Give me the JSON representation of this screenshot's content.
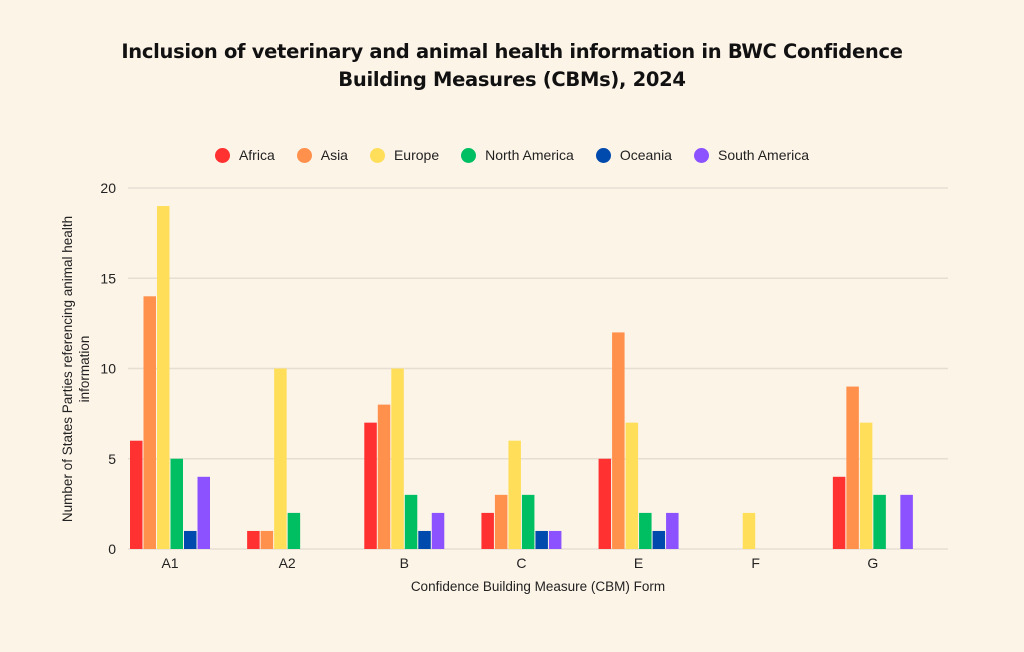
{
  "chart_data": {
    "type": "bar",
    "title": "Inclusion of veterinary and animal health information in BWC Confidence Building Measures (CBMs), 2024",
    "title_lines": [
      "Inclusion of veterinary and animal health information in BWC Confidence",
      "Building Measures (CBMs), 2024"
    ],
    "xlabel": "Confidence Building Measure (CBM) Form",
    "ylabel": "Number of States Parties referencing animal health information",
    "ylabel_lines": [
      "Number of States Parties referencing animal health",
      "information"
    ],
    "ylim": [
      0,
      20
    ],
    "yticks": [
      0,
      5,
      10,
      15,
      20
    ],
    "grid": true,
    "legend_position": "top-center",
    "categories": [
      "A1",
      "A2",
      "B",
      "C",
      "E",
      "F",
      "G"
    ],
    "series": [
      {
        "name": "Africa",
        "color": "#ff3131",
        "values": [
          6,
          1,
          7,
          2,
          5,
          0,
          4
        ]
      },
      {
        "name": "Asia",
        "color": "#ff914d",
        "values": [
          14,
          1,
          8,
          3,
          12,
          0,
          9
        ]
      },
      {
        "name": "Europe",
        "color": "#ffde59",
        "values": [
          19,
          10,
          10,
          6,
          7,
          2,
          7
        ]
      },
      {
        "name": "North America",
        "color": "#00bf63",
        "values": [
          5,
          2,
          3,
          3,
          2,
          0,
          3
        ]
      },
      {
        "name": "Oceania",
        "color": "#004aad",
        "values": [
          1,
          0,
          1,
          1,
          1,
          0,
          0
        ]
      },
      {
        "name": "South America",
        "color": "#8c52ff",
        "values": [
          4,
          0,
          2,
          1,
          2,
          0,
          3
        ]
      }
    ]
  }
}
